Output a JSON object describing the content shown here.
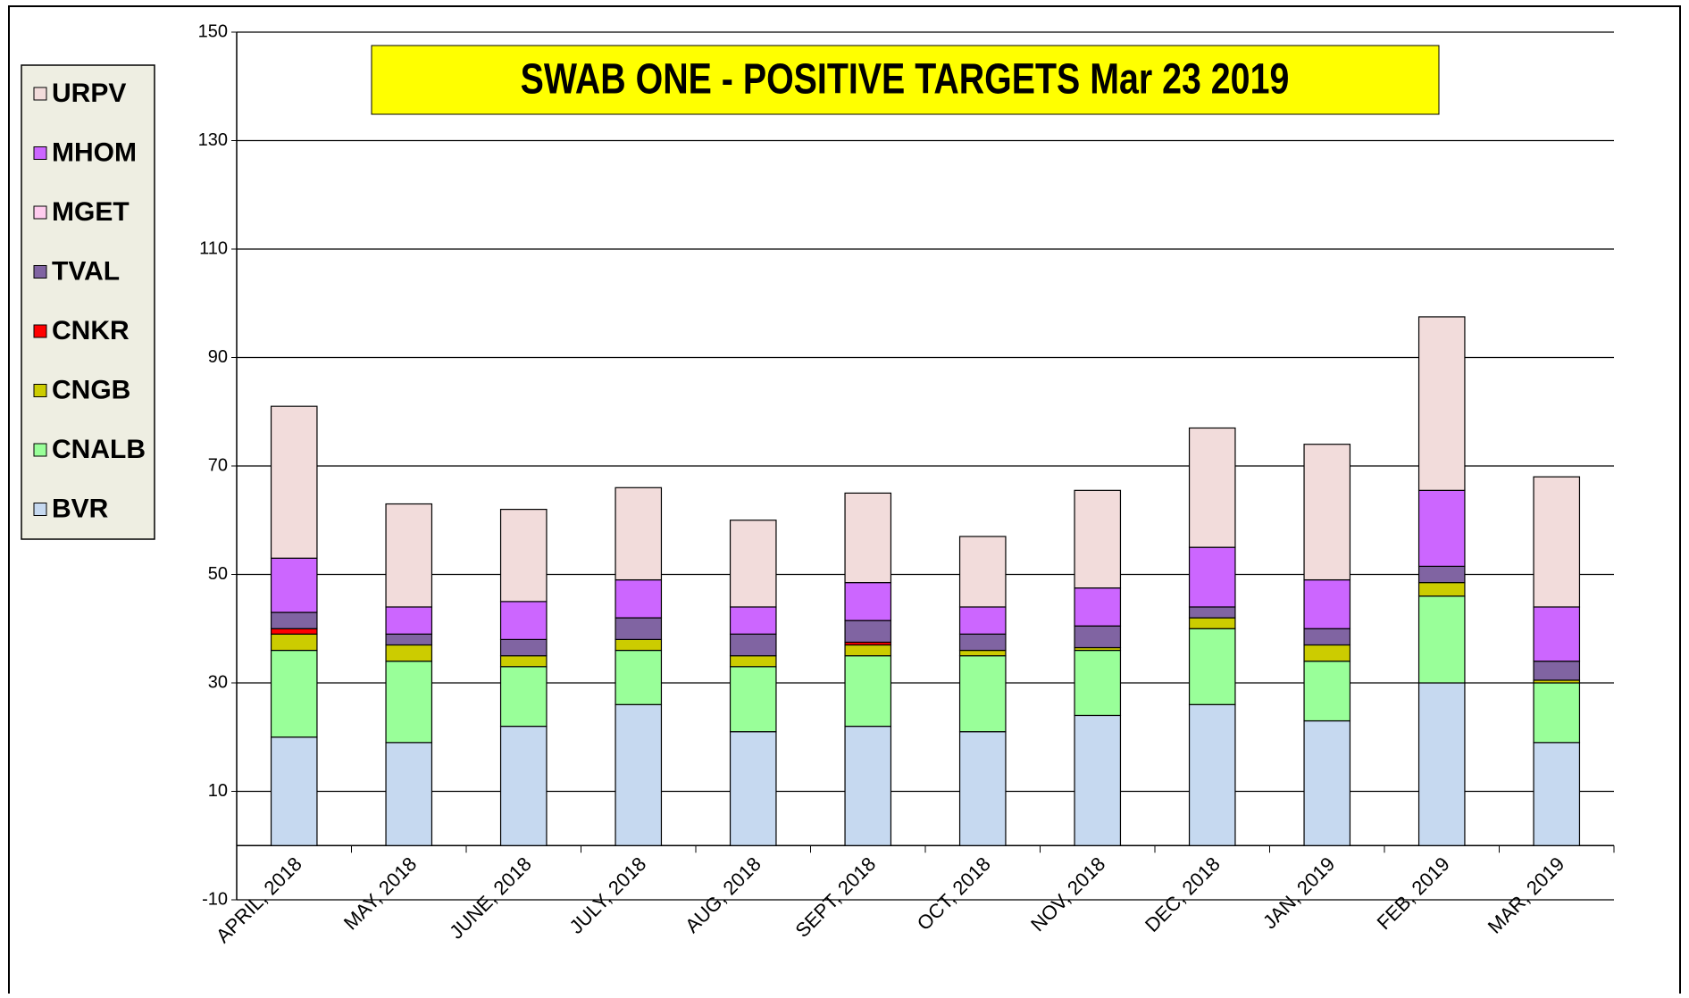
{
  "chart_data": {
    "type": "stacked_bar",
    "title": "SWAB ONE - POSITIVE TARGETS Mar 23 2019",
    "categories": [
      "APRIL, 2018",
      "MAY, 2018",
      "JUNE, 2018",
      "JULY, 2018",
      "AUG, 2018",
      "SEPT, 2018",
      "OCT, 2018",
      "NOV, 2018",
      "DEC, 2018",
      "JAN, 2019",
      "FEB, 2019",
      "MAR, 2019"
    ],
    "series": [
      {
        "name": "BVR",
        "color": "#c6d9f0",
        "values": [
          20,
          19,
          22,
          26,
          21,
          22,
          21,
          24,
          26,
          23,
          30,
          19
        ]
      },
      {
        "name": "CNALB",
        "color": "#99ff99",
        "values": [
          16,
          15,
          11,
          10,
          12,
          13,
          14,
          12,
          14,
          11,
          16,
          11
        ]
      },
      {
        "name": "CNGB",
        "color": "#cccc00",
        "values": [
          3,
          3,
          2,
          2,
          2,
          2,
          1,
          0.5,
          2,
          3,
          2.5,
          0.5
        ]
      },
      {
        "name": "CNKR",
        "color": "#ff0000",
        "values": [
          1,
          0,
          0,
          0,
          0,
          0.5,
          0,
          0,
          0,
          0,
          0,
          0
        ]
      },
      {
        "name": "TVAL",
        "color": "#8064a2",
        "values": [
          3,
          2,
          3,
          4,
          4,
          4,
          3,
          4,
          2,
          3,
          3,
          3.5
        ]
      },
      {
        "name": "MGET",
        "color": "#ffccee",
        "values": [
          0,
          0,
          0,
          0,
          0,
          0,
          0,
          0,
          0,
          0,
          0,
          0
        ]
      },
      {
        "name": "MHOM",
        "color": "#cc66ff",
        "values": [
          10,
          5,
          7,
          7,
          5,
          7,
          5,
          7,
          11,
          9,
          14,
          10
        ]
      },
      {
        "name": "URPV",
        "color": "#f2dcdb",
        "values": [
          28,
          19,
          17,
          17,
          16,
          16.5,
          13,
          18,
          22,
          25,
          32,
          24
        ]
      }
    ],
    "ylim": [
      -10,
      150
    ],
    "yticks": [
      -10,
      10,
      30,
      50,
      70,
      90,
      110,
      130,
      150
    ],
    "grid": true
  }
}
